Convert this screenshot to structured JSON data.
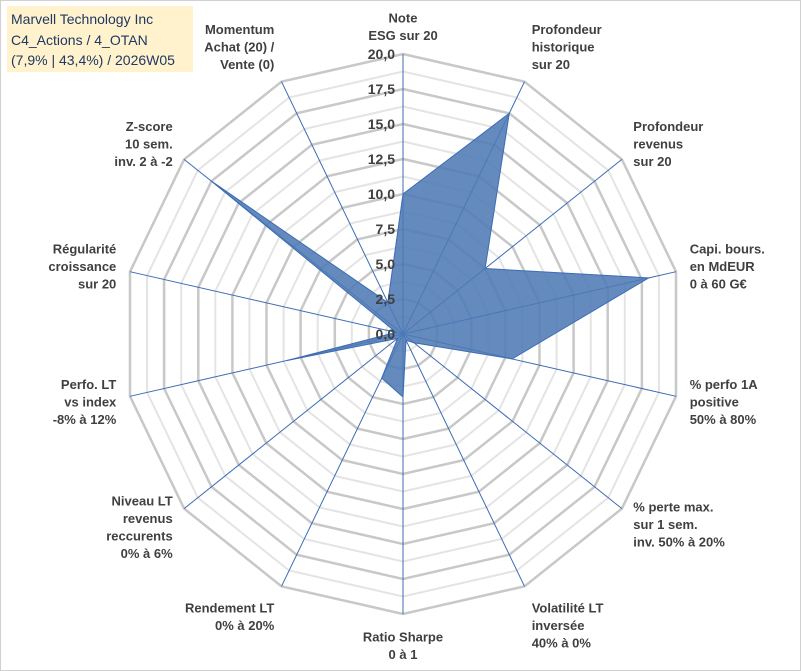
{
  "header": {
    "line1": "Marvell Technology Inc",
    "line2": "C4_Actions / 4_OTAN",
    "line3": "(7,9% | 43,4%) / 2026W05"
  },
  "chart_data": {
    "type": "radar",
    "r_min": 0,
    "r_max": 20,
    "major_step": 2.5,
    "minor_step": 1.25,
    "tick_labels": [
      "0,0",
      "2,5",
      "5,0",
      "7,5",
      "10,0",
      "12,5",
      "15,0",
      "17,5",
      "20,0"
    ],
    "categories": [
      [
        "Note",
        "ESG sur 20"
      ],
      [
        "Profondeur",
        "historique",
        "sur 20"
      ],
      [
        "Profondeur",
        "revenus",
        "sur 20"
      ],
      [
        "Capi. bours.",
        "en MdEUR",
        "0 à 60 G€"
      ],
      [
        "% perfo 1A",
        "positive",
        "50% à 80%"
      ],
      [
        "% perte max.",
        "sur 1 sem.",
        "inv. 50% à 20%"
      ],
      [
        "Volatilité LT",
        "inversée",
        "40% à 0%"
      ],
      [
        "Ratio Sharpe",
        "0 à 1"
      ],
      [
        "Rendement LT",
        "0% à 20%"
      ],
      [
        "Niveau LT",
        "revenus",
        "reccurents",
        "0% à 6%"
      ],
      [
        "Perfo. LT",
        "vs index",
        "-8% à 12%"
      ],
      [
        "Régularité",
        "croissance",
        "sur 20"
      ],
      [
        "Z-score",
        "10 sem.",
        "inv. 2 à -2"
      ],
      [
        "Momentum",
        "Achat (20) /",
        "Vente (0)"
      ]
    ],
    "series": [
      {
        "name": "Marvell Technology Inc",
        "values": [
          10.0,
          17.5,
          7.5,
          18.0,
          8.0,
          1.0,
          0.5,
          4.5,
          3.5,
          0.5,
          8.5,
          0.5,
          17.5,
          2.5
        ]
      }
    ],
    "colors": {
      "fill": "#4e7ab5",
      "stroke": "#3b6cb4",
      "grid_major": "#c8c8c8",
      "grid_minor": "#e4e4e4",
      "spoke": "#3b6cb4"
    }
  }
}
